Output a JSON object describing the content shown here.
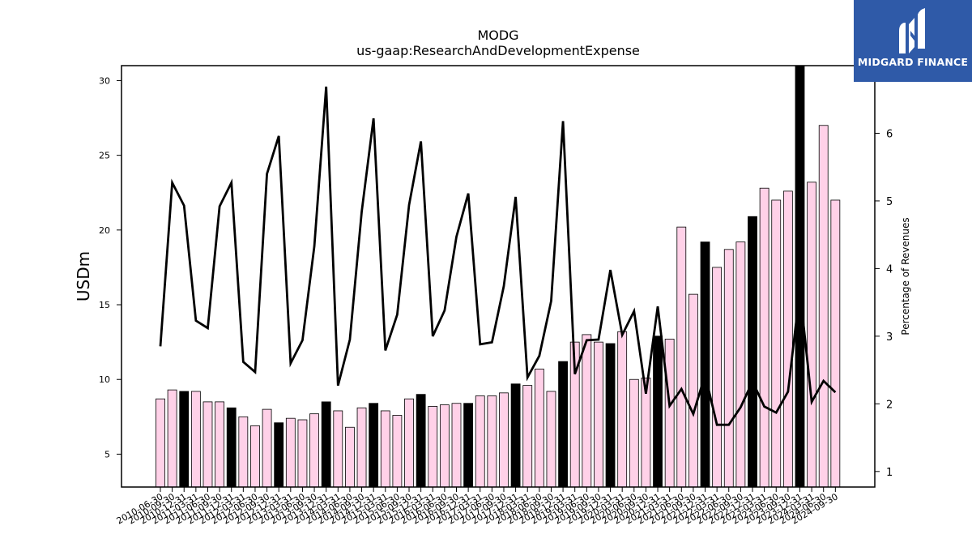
{
  "chart_data": {
    "type": "bar+line",
    "title": "MODG",
    "subtitle": "us-gaap:ResearchAndDevelopmentExpense",
    "ylabel_left": "USDm",
    "ylabel_right": "Percentage of Revenues",
    "ylim_left": [
      2.8,
      31
    ],
    "ylim_right": [
      0.77,
      7.0
    ],
    "yticks_left": [
      5,
      10,
      15,
      20,
      25,
      30
    ],
    "yticks_right": [
      1,
      2,
      3,
      4,
      5,
      6
    ],
    "categories": [
      "2010-06-30",
      "2010-09-30",
      "2010-12-31",
      "2011-03-31",
      "2011-06-30",
      "2011-09-30",
      "2011-12-31",
      "2012-03-31",
      "2012-06-30",
      "2012-09-30",
      "2012-12-31",
      "2013-03-31",
      "2013-06-30",
      "2013-09-30",
      "2013-12-31",
      "2014-03-31",
      "2014-06-30",
      "2014-09-30",
      "2014-12-31",
      "2015-03-31",
      "2015-06-30",
      "2015-09-30",
      "2015-12-31",
      "2016-03-31",
      "2016-06-30",
      "2016-09-30",
      "2016-12-31",
      "2017-03-31",
      "2017-06-30",
      "2017-09-30",
      "2017-12-31",
      "2018-03-31",
      "2018-06-30",
      "2018-09-30",
      "2018-12-31",
      "2019-03-31",
      "2019-06-30",
      "2019-09-30",
      "2019-12-31",
      "2020-03-31",
      "2020-06-30",
      "2020-09-30",
      "2020-12-31",
      "2021-03-31",
      "2021-06-30",
      "2021-09-30",
      "2021-12-31",
      "2022-03-31",
      "2022-06-30",
      "2022-09-30",
      "2022-12-31",
      "2023-03-31",
      "2023-06-30",
      "2023-09-30",
      "2023-12-31",
      "2024-03-31",
      "2024-06-30",
      "2024-09-30"
    ],
    "series": [
      {
        "kind": "bar",
        "axis": "left",
        "values": [
          8.7,
          9.3,
          9.2,
          9.2,
          8.5,
          8.5,
          8.1,
          7.5,
          6.9,
          8.0,
          7.1,
          7.4,
          7.3,
          7.7,
          8.5,
          7.9,
          6.8,
          8.1,
          8.4,
          7.9,
          7.6,
          8.7,
          9.0,
          8.2,
          8.3,
          8.4,
          8.4,
          8.9,
          8.9,
          9.1,
          9.7,
          9.6,
          10.7,
          9.2,
          11.2,
          12.5,
          13.0,
          12.5,
          12.4,
          13.2,
          10.0,
          10.1,
          12.9,
          12.7,
          20.2,
          15.7,
          19.2,
          17.5,
          18.7,
          19.2,
          20.9,
          22.8,
          22.0,
          22.6,
          31.0,
          23.2,
          27.0,
          22.0
        ],
        "highlight": [
          "no",
          "no",
          "yes",
          "no",
          "no",
          "no",
          "yes",
          "no",
          "no",
          "no",
          "yes",
          "no",
          "no",
          "no",
          "yes",
          "no",
          "no",
          "no",
          "yes",
          "no",
          "no",
          "no",
          "yes",
          "no",
          "no",
          "no",
          "yes",
          "no",
          "no",
          "no",
          "yes",
          "no",
          "no",
          "no",
          "yes",
          "no",
          "no",
          "no",
          "yes",
          "no",
          "no",
          "no",
          "yes",
          "no",
          "no",
          "no",
          "yes",
          "no",
          "no",
          "no",
          "yes",
          "no",
          "no",
          "no",
          "yes",
          "no",
          "no",
          "no"
        ],
        "color": "#ffd1e8",
        "highlight_color": "#000000"
      },
      {
        "kind": "line",
        "axis": "right",
        "values": [
          2.85,
          5.27,
          4.93,
          3.23,
          3.12,
          4.92,
          5.27,
          2.62,
          2.47,
          5.4,
          5.96,
          2.6,
          2.94,
          4.33,
          6.69,
          2.27,
          2.95,
          4.84,
          6.22,
          2.79,
          3.32,
          4.94,
          5.88,
          3.0,
          3.38,
          4.47,
          5.11,
          2.88,
          2.91,
          3.74,
          5.06,
          2.39,
          2.71,
          3.52,
          6.18,
          2.44,
          2.94,
          2.95,
          3.98,
          3.02,
          3.37,
          2.15,
          3.44,
          1.97,
          2.22,
          1.85,
          2.43,
          1.69,
          1.69,
          1.95,
          2.33,
          1.96,
          1.87,
          2.18,
          3.68,
          2.03,
          2.34,
          2.17
        ],
        "color": "#000000"
      }
    ]
  },
  "logo": {
    "text": "MIDGARD FINANCE",
    "background": "#2f5aa8"
  }
}
